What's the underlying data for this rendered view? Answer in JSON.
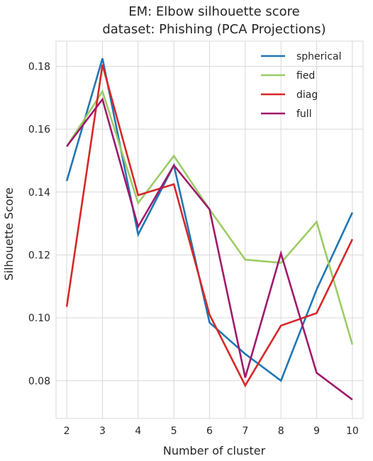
{
  "chart_data": {
    "type": "line",
    "title_line1": "EM: Elbow silhouette score",
    "title_line2": "dataset: Phishing (PCA Projections)",
    "xlabel": "Number of cluster",
    "ylabel": "Silhouette Score",
    "x": [
      2,
      3,
      4,
      5,
      6,
      7,
      8,
      9,
      10
    ],
    "xlim": [
      1.7,
      10.3
    ],
    "ylim": [
      0.068,
      0.188
    ],
    "yticks": [
      "0.08",
      "0.10",
      "0.12",
      "0.14",
      "0.16",
      "0.18"
    ],
    "ytick_values": [
      0.08,
      0.1,
      0.12,
      0.14,
      0.16,
      0.18
    ],
    "grid": true,
    "legend_position": "top-right",
    "series": [
      {
        "name": "spherical",
        "color": "#1f77b4",
        "values": [
          0.1435,
          0.1825,
          0.1265,
          0.1485,
          0.0985,
          0.0885,
          0.08,
          0.109,
          0.1335
        ]
      },
      {
        "name": "fied",
        "color": "#9ccc65",
        "values": [
          0.1545,
          0.172,
          0.1365,
          0.1515,
          0.1345,
          0.1185,
          0.1175,
          0.1305,
          0.0915
        ]
      },
      {
        "name": "diag",
        "color": "#d62728",
        "values": [
          0.1035,
          0.1805,
          0.139,
          0.1425,
          0.101,
          0.0785,
          0.0975,
          0.1015,
          0.125
        ]
      },
      {
        "name": "full",
        "color": "#a0196b",
        "values": [
          0.1545,
          0.1695,
          0.129,
          0.1485,
          0.1345,
          0.081,
          0.1205,
          0.0825,
          0.074
        ]
      }
    ]
  }
}
